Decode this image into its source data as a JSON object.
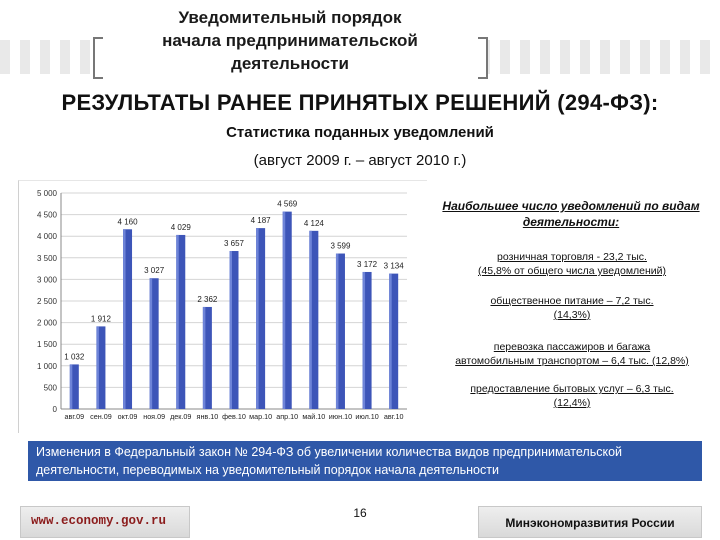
{
  "header": {
    "title_lines": [
      "Уведомительный порядок",
      "начала предпринимательской",
      "деятельности"
    ]
  },
  "main_title": "РЕЗУЛЬТАТЫ РАНЕЕ ПРИНЯТЫХ РЕШЕНИЙ (294-ФЗ):",
  "subtitle": "Статистика поданных уведомлений",
  "period": "(август 2009 г. – август 2010 г.)",
  "colors": {
    "bar": "#3d55b8",
    "bar_highlight": "#2c44a8",
    "note_bg": "#2f58a8",
    "footer_link": "#8b1c1c"
  },
  "chart_data": {
    "type": "bar",
    "categories": [
      "авг.09",
      "сен.09",
      "окт.09",
      "ноя.09",
      "дек.09",
      "янв.10",
      "фев.10",
      "мар.10",
      "апр.10",
      "май.10",
      "июн.10",
      "июл.10",
      "авг.10"
    ],
    "values": [
      1032,
      1912,
      4160,
      3027,
      4029,
      2362,
      3657,
      4187,
      4569,
      4124,
      3599,
      3172,
      3134
    ],
    "value_labels": [
      "1 032",
      "1 912",
      "4 160",
      "3 027",
      "4 029",
      "2 362",
      "3 657",
      "4 187",
      "4 569",
      "4 124",
      "3 599",
      "3 172",
      "3 134"
    ],
    "y_ticks": [
      "0",
      "500",
      "1 000",
      "1 500",
      "2 000",
      "2 500",
      "3 000",
      "3 500",
      "4 000",
      "4 500",
      "5 000"
    ],
    "ylim": [
      0,
      5000
    ],
    "grid": true
  },
  "stats": {
    "title": "Наибольшее число уведомлений по видам деятельности:",
    "items": [
      {
        "line1": "розничная торговля - 23,2 тыс.",
        "line2": "(45,8% от общего числа уведомлений)"
      },
      {
        "line1": "общественное питание – 7,2 тыс.",
        "line2": "(14,3%)"
      },
      {
        "line1": "перевозка пассажиров и багажа",
        "line2": "автомобильным транспортом – 6,4 тыс. (12,8%)"
      },
      {
        "line1": "предоставление бытовых услуг – 6,3 тыс.",
        "line2": "(12,4%)"
      }
    ]
  },
  "note": "Изменения в Федеральный закон № 294-ФЗ об увеличении количества видов предпринимательской деятельности, переводимых на уведомительный порядок начала деятельности",
  "footer": {
    "website": "www.economy.gov.ru",
    "page_number": "16",
    "ministry": "Минэкономразвития России"
  }
}
